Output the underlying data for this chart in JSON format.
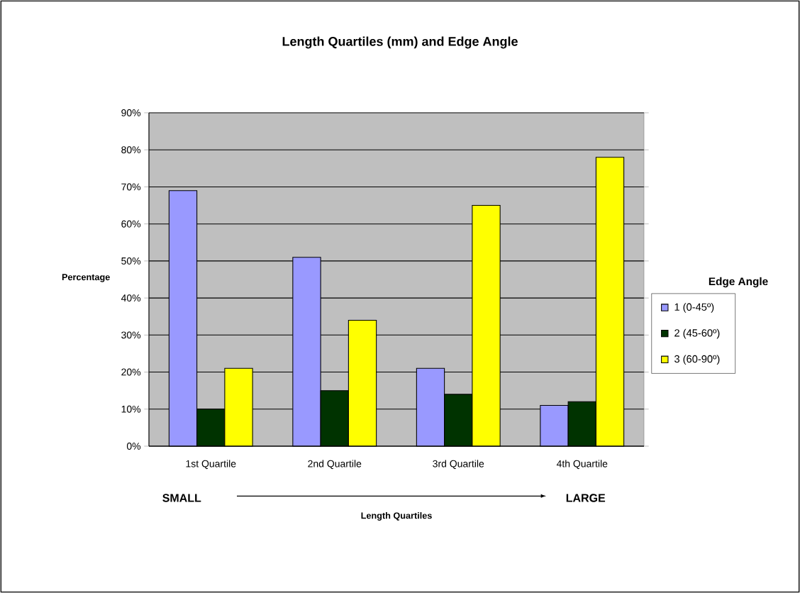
{
  "chart_data": {
    "type": "bar",
    "title": "Length Quartiles (mm) and Edge Angle",
    "xlabel": "Length Quartiles",
    "ylabel": "Percentage",
    "legend_title": "Edge Angle",
    "categories": [
      "1st Quartile",
      "2nd Quartile",
      "3rd Quartile",
      "4th Quartile"
    ],
    "series": [
      {
        "name": "1 (0-45º)",
        "color": "#9999ff",
        "values": [
          69,
          51,
          21,
          11
        ]
      },
      {
        "name": "2 (45-60º)",
        "color": "#003300",
        "values": [
          10,
          15,
          14,
          12
        ]
      },
      {
        "name": "3 (60-90º)",
        "color": "#ffff00",
        "values": [
          21,
          34,
          65,
          78
        ]
      }
    ],
    "ylim": [
      0,
      90
    ],
    "yticks": [
      {
        "value": 0,
        "label": "0%"
      },
      {
        "value": 10,
        "label": "10%"
      },
      {
        "value": 20,
        "label": "20%"
      },
      {
        "value": 30,
        "label": "30%"
      },
      {
        "value": 40,
        "label": "40%"
      },
      {
        "value": 50,
        "label": "50%"
      },
      {
        "value": 60,
        "label": "60%"
      },
      {
        "value": 70,
        "label": "70%"
      },
      {
        "value": 80,
        "label": "80%"
      },
      {
        "value": 90,
        "label": "90%"
      }
    ],
    "grid": "y",
    "legend": "right",
    "annotations": [
      "SMALL",
      "LARGE"
    ]
  }
}
